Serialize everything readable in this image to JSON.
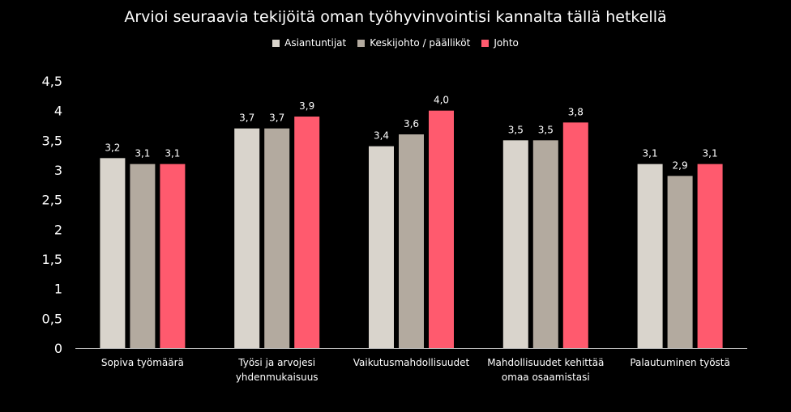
{
  "chart_data": {
    "type": "bar",
    "title": "Arvioi seuraavia tekijöitä oman työhyvinvointisi kannalta tällä hetkellä",
    "categories": [
      [
        "Sopiva työmäärä"
      ],
      [
        "Työsi ja arvojesi",
        "yhdenmukaisuus"
      ],
      [
        "Vaikutusmahdollisuudet"
      ],
      [
        "Mahdollisuudet kehittää",
        "omaa osaamistasi"
      ],
      [
        "Palautuminen työstä"
      ]
    ],
    "series": [
      {
        "name": "Asiantuntijat",
        "color": "#d9d4cc",
        "values": [
          3.2,
          3.7,
          3.4,
          3.5,
          3.1
        ],
        "labels": [
          "3,2",
          "3,7",
          "3,4",
          "3,5",
          "3,1"
        ]
      },
      {
        "name": "Keskijohto / päälliköt",
        "color": "#b3aa9f",
        "values": [
          3.1,
          3.7,
          3.6,
          3.5,
          2.9
        ],
        "labels": [
          "3,1",
          "3,7",
          "3,6",
          "3,5",
          "2,9"
        ]
      },
      {
        "name": "Johto",
        "color": "#ff5a6e",
        "values": [
          3.1,
          3.9,
          4.0,
          3.8,
          3.1
        ],
        "labels": [
          "3,1",
          "3,9",
          "4,0",
          "3,8",
          "3,1"
        ]
      }
    ],
    "ylim": [
      0,
      4.5
    ],
    "yticks": [
      "0",
      "0,5",
      "1",
      "1,5",
      "2",
      "2,5",
      "3",
      "3,5",
      "4",
      "4,5"
    ],
    "xlabel": "",
    "ylabel": "",
    "grid": false,
    "legend_position": "top-center"
  }
}
